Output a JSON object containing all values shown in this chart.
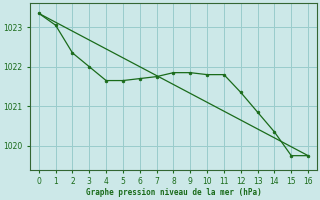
{
  "title": "Graphe pression niveau de la mer (hPa)",
  "background_color": "#cce8e8",
  "grid_color": "#99cccc",
  "line_color": "#1a6b1a",
  "spine_color": "#336633",
  "xlim": [
    -0.5,
    16.5
  ],
  "ylim": [
    1019.4,
    1023.6
  ],
  "yticks": [
    1020,
    1021,
    1022,
    1023
  ],
  "xticks": [
    0,
    1,
    2,
    3,
    4,
    5,
    6,
    7,
    8,
    9,
    10,
    11,
    12,
    13,
    14,
    15,
    16
  ],
  "line1_x": [
    0,
    16
  ],
  "line1_y": [
    1023.35,
    1019.75
  ],
  "line2_x": [
    0,
    1,
    2,
    3,
    4,
    5,
    6,
    7,
    8,
    9,
    10,
    11,
    12,
    13,
    14,
    15,
    16
  ],
  "line2_y": [
    1023.35,
    1023.05,
    1022.35,
    1022.0,
    1021.65,
    1021.65,
    1021.7,
    1021.75,
    1021.85,
    1021.85,
    1021.8,
    1021.8,
    1021.35,
    1020.85,
    1020.35,
    1019.75,
    1019.75
  ]
}
